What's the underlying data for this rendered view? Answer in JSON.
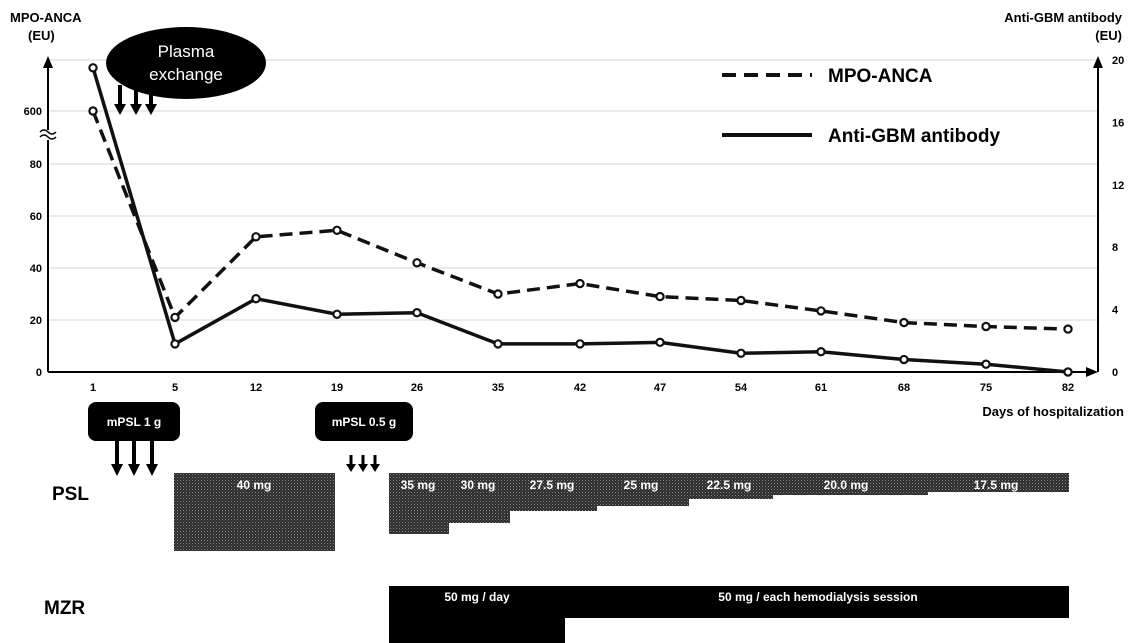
{
  "chart_data": {
    "type": "line",
    "x": [
      1,
      5,
      12,
      19,
      26,
      35,
      42,
      47,
      54,
      61,
      68,
      75,
      82
    ],
    "xlabel": "Days of hospitalization",
    "y_left_label": "MPO-ANCA\n(EU)",
    "y_right_label": "Anti-GBM antibody\n(EU)",
    "y_left_ticks": [
      "0",
      "20",
      "40",
      "60",
      "80",
      "600"
    ],
    "y_right_ticks": [
      "0",
      "4",
      "8",
      "12",
      "16",
      "20"
    ],
    "y_right_lim": [
      0,
      20
    ],
    "series": [
      {
        "name": "MPO-ANCA",
        "axis": "left",
        "style": "dashed",
        "values": [
          600,
          21,
          52,
          54.5,
          42,
          30,
          34,
          29,
          27.5,
          23.5,
          19,
          17.5,
          16.5
        ]
      },
      {
        "name": "Anti-GBM antibody",
        "axis": "right",
        "style": "solid",
        "values": [
          19.5,
          1.8,
          4.7,
          3.7,
          3.8,
          1.8,
          1.8,
          1.9,
          1.2,
          1.3,
          0.8,
          0.5,
          0
        ]
      }
    ],
    "legend_position": "top-right"
  },
  "annotations": {
    "plasma_exchange": "Plasma\nexchange",
    "mpsl_1": "mPSL 1 g",
    "mpsl_2": "mPSL 0.5 g"
  },
  "psl": {
    "label": "PSL",
    "doses": [
      "40 mg",
      "35 mg",
      "30 mg",
      "27.5 mg",
      "25 mg",
      "22.5 mg",
      "20.0 mg",
      "17.5 mg"
    ]
  },
  "mzr": {
    "label": "MZR",
    "doses": [
      "50 mg / day",
      "50 mg / each hemodialysis session"
    ]
  },
  "colors": {
    "line": "#111111",
    "box": "#000000",
    "stipple": "#3a3a3a",
    "grid": "#d6d6d6"
  }
}
